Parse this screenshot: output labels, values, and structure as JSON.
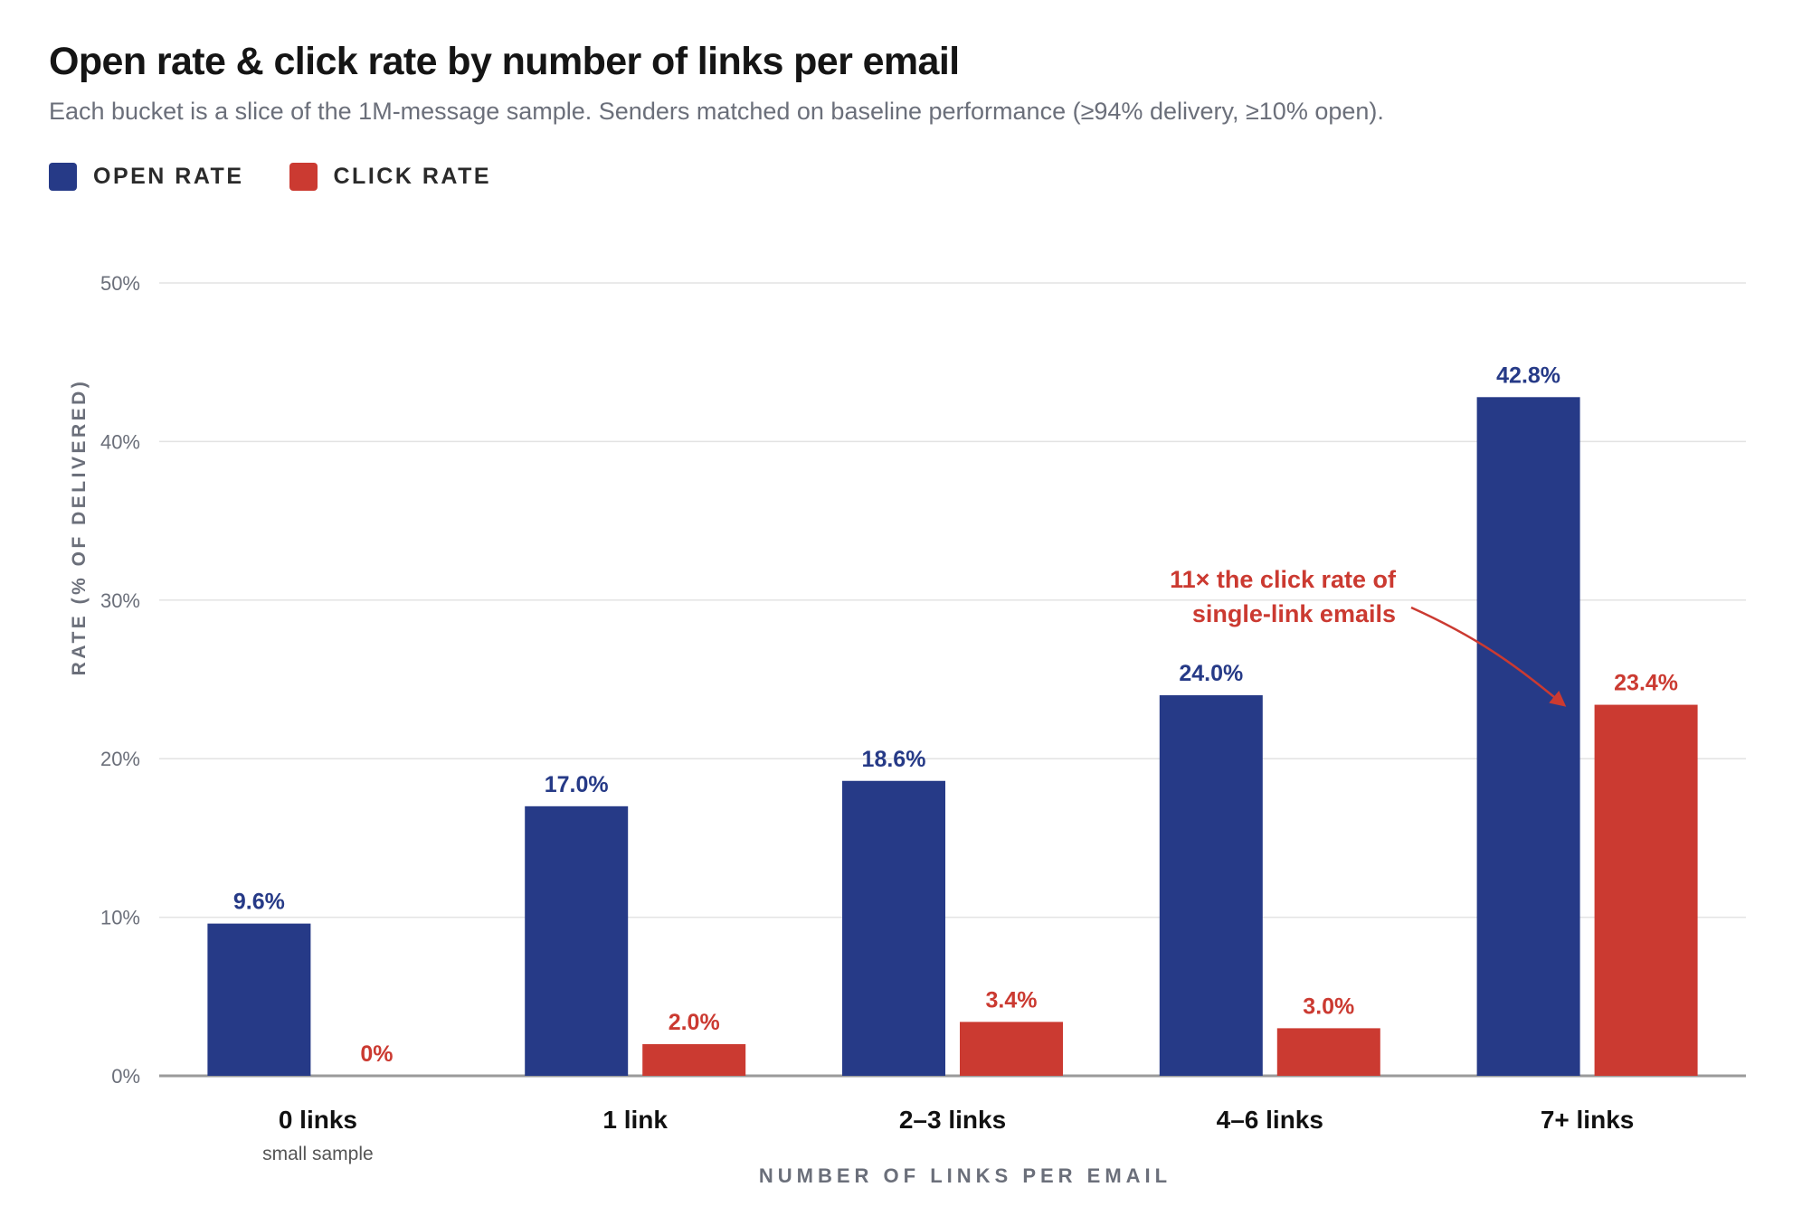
{
  "header": {
    "title": "Open rate & click rate by number of links per email",
    "subtitle": "Each bucket is a slice of the 1M-message sample. Senders matched on baseline performance (≥94% delivery, ≥10% open)."
  },
  "legend": {
    "items": [
      {
        "label": "OPEN RATE",
        "color": "#263a87"
      },
      {
        "label": "CLICK RATE",
        "color": "#cb3a31"
      }
    ]
  },
  "chart_data": {
    "type": "bar",
    "title": "Open rate & click rate by number of links per email",
    "subtitle": "Each bucket is a slice of the 1M-message sample. Senders matched on baseline performance (≥94% delivery, ≥10% open).",
    "xlabel": "NUMBER OF LINKS PER EMAIL",
    "ylabel": "RATE (% OF DELIVERED)",
    "ylim": [
      0,
      50
    ],
    "yticks": [
      0,
      10,
      20,
      30,
      40,
      50
    ],
    "ytick_labels": [
      "0%",
      "10%",
      "20%",
      "30%",
      "40%",
      "50%"
    ],
    "grid": true,
    "legend_position": "top-left",
    "categories": [
      "0 links",
      "1 link",
      "2–3 links",
      "4–6 links",
      "7+ links"
    ],
    "category_notes": [
      "small sample",
      "",
      "",
      "",
      ""
    ],
    "series": [
      {
        "name": "OPEN RATE",
        "color": "#263a87",
        "values": [
          9.6,
          17.0,
          18.6,
          24.0,
          42.8
        ],
        "labels": [
          "9.6%",
          "17.0%",
          "18.6%",
          "24.0%",
          "42.8%"
        ]
      },
      {
        "name": "CLICK RATE",
        "color": "#cb3a31",
        "values": [
          0,
          2.0,
          3.4,
          3.0,
          23.4
        ],
        "labels": [
          "0%",
          "2.0%",
          "3.4%",
          "3.0%",
          "23.4%"
        ]
      }
    ],
    "annotation": {
      "lines": [
        "11× the click rate of",
        "single-link emails"
      ],
      "target_category": "7+ links",
      "target_series": "CLICK RATE",
      "color": "#cb3a31"
    }
  }
}
